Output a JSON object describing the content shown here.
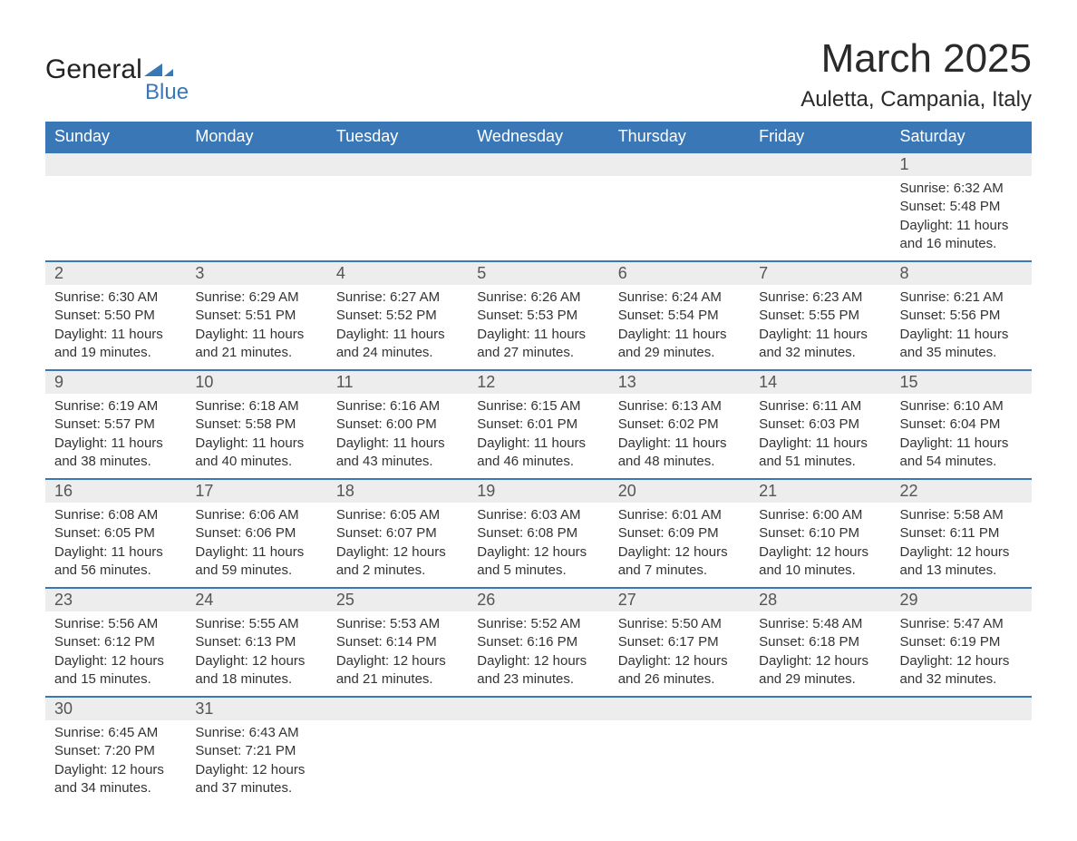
{
  "logo": {
    "text1": "General",
    "text2": "Blue",
    "shape_color": "#3a77b7"
  },
  "title": "March 2025",
  "location": "Auletta, Campania, Italy",
  "colors": {
    "header_bg": "#3a77b7",
    "header_text": "#ffffff",
    "daynum_bg": "#ededed",
    "border": "#3a77b7",
    "body_text": "#333333",
    "page_bg": "#ffffff"
  },
  "fonts": {
    "title_size_pt": 33,
    "location_size_pt": 18,
    "header_size_pt": 14,
    "daynum_size_pt": 14,
    "detail_size_pt": 11
  },
  "weekdays": [
    "Sunday",
    "Monday",
    "Tuesday",
    "Wednesday",
    "Thursday",
    "Friday",
    "Saturday"
  ],
  "weeks": [
    [
      null,
      null,
      null,
      null,
      null,
      null,
      {
        "n": "1",
        "sr": "Sunrise: 6:32 AM",
        "ss": "Sunset: 5:48 PM",
        "d1": "Daylight: 11 hours",
        "d2": "and 16 minutes."
      }
    ],
    [
      {
        "n": "2",
        "sr": "Sunrise: 6:30 AM",
        "ss": "Sunset: 5:50 PM",
        "d1": "Daylight: 11 hours",
        "d2": "and 19 minutes."
      },
      {
        "n": "3",
        "sr": "Sunrise: 6:29 AM",
        "ss": "Sunset: 5:51 PM",
        "d1": "Daylight: 11 hours",
        "d2": "and 21 minutes."
      },
      {
        "n": "4",
        "sr": "Sunrise: 6:27 AM",
        "ss": "Sunset: 5:52 PM",
        "d1": "Daylight: 11 hours",
        "d2": "and 24 minutes."
      },
      {
        "n": "5",
        "sr": "Sunrise: 6:26 AM",
        "ss": "Sunset: 5:53 PM",
        "d1": "Daylight: 11 hours",
        "d2": "and 27 minutes."
      },
      {
        "n": "6",
        "sr": "Sunrise: 6:24 AM",
        "ss": "Sunset: 5:54 PM",
        "d1": "Daylight: 11 hours",
        "d2": "and 29 minutes."
      },
      {
        "n": "7",
        "sr": "Sunrise: 6:23 AM",
        "ss": "Sunset: 5:55 PM",
        "d1": "Daylight: 11 hours",
        "d2": "and 32 minutes."
      },
      {
        "n": "8",
        "sr": "Sunrise: 6:21 AM",
        "ss": "Sunset: 5:56 PM",
        "d1": "Daylight: 11 hours",
        "d2": "and 35 minutes."
      }
    ],
    [
      {
        "n": "9",
        "sr": "Sunrise: 6:19 AM",
        "ss": "Sunset: 5:57 PM",
        "d1": "Daylight: 11 hours",
        "d2": "and 38 minutes."
      },
      {
        "n": "10",
        "sr": "Sunrise: 6:18 AM",
        "ss": "Sunset: 5:58 PM",
        "d1": "Daylight: 11 hours",
        "d2": "and 40 minutes."
      },
      {
        "n": "11",
        "sr": "Sunrise: 6:16 AM",
        "ss": "Sunset: 6:00 PM",
        "d1": "Daylight: 11 hours",
        "d2": "and 43 minutes."
      },
      {
        "n": "12",
        "sr": "Sunrise: 6:15 AM",
        "ss": "Sunset: 6:01 PM",
        "d1": "Daylight: 11 hours",
        "d2": "and 46 minutes."
      },
      {
        "n": "13",
        "sr": "Sunrise: 6:13 AM",
        "ss": "Sunset: 6:02 PM",
        "d1": "Daylight: 11 hours",
        "d2": "and 48 minutes."
      },
      {
        "n": "14",
        "sr": "Sunrise: 6:11 AM",
        "ss": "Sunset: 6:03 PM",
        "d1": "Daylight: 11 hours",
        "d2": "and 51 minutes."
      },
      {
        "n": "15",
        "sr": "Sunrise: 6:10 AM",
        "ss": "Sunset: 6:04 PM",
        "d1": "Daylight: 11 hours",
        "d2": "and 54 minutes."
      }
    ],
    [
      {
        "n": "16",
        "sr": "Sunrise: 6:08 AM",
        "ss": "Sunset: 6:05 PM",
        "d1": "Daylight: 11 hours",
        "d2": "and 56 minutes."
      },
      {
        "n": "17",
        "sr": "Sunrise: 6:06 AM",
        "ss": "Sunset: 6:06 PM",
        "d1": "Daylight: 11 hours",
        "d2": "and 59 minutes."
      },
      {
        "n": "18",
        "sr": "Sunrise: 6:05 AM",
        "ss": "Sunset: 6:07 PM",
        "d1": "Daylight: 12 hours",
        "d2": "and 2 minutes."
      },
      {
        "n": "19",
        "sr": "Sunrise: 6:03 AM",
        "ss": "Sunset: 6:08 PM",
        "d1": "Daylight: 12 hours",
        "d2": "and 5 minutes."
      },
      {
        "n": "20",
        "sr": "Sunrise: 6:01 AM",
        "ss": "Sunset: 6:09 PM",
        "d1": "Daylight: 12 hours",
        "d2": "and 7 minutes."
      },
      {
        "n": "21",
        "sr": "Sunrise: 6:00 AM",
        "ss": "Sunset: 6:10 PM",
        "d1": "Daylight: 12 hours",
        "d2": "and 10 minutes."
      },
      {
        "n": "22",
        "sr": "Sunrise: 5:58 AM",
        "ss": "Sunset: 6:11 PM",
        "d1": "Daylight: 12 hours",
        "d2": "and 13 minutes."
      }
    ],
    [
      {
        "n": "23",
        "sr": "Sunrise: 5:56 AM",
        "ss": "Sunset: 6:12 PM",
        "d1": "Daylight: 12 hours",
        "d2": "and 15 minutes."
      },
      {
        "n": "24",
        "sr": "Sunrise: 5:55 AM",
        "ss": "Sunset: 6:13 PM",
        "d1": "Daylight: 12 hours",
        "d2": "and 18 minutes."
      },
      {
        "n": "25",
        "sr": "Sunrise: 5:53 AM",
        "ss": "Sunset: 6:14 PM",
        "d1": "Daylight: 12 hours",
        "d2": "and 21 minutes."
      },
      {
        "n": "26",
        "sr": "Sunrise: 5:52 AM",
        "ss": "Sunset: 6:16 PM",
        "d1": "Daylight: 12 hours",
        "d2": "and 23 minutes."
      },
      {
        "n": "27",
        "sr": "Sunrise: 5:50 AM",
        "ss": "Sunset: 6:17 PM",
        "d1": "Daylight: 12 hours",
        "d2": "and 26 minutes."
      },
      {
        "n": "28",
        "sr": "Sunrise: 5:48 AM",
        "ss": "Sunset: 6:18 PM",
        "d1": "Daylight: 12 hours",
        "d2": "and 29 minutes."
      },
      {
        "n": "29",
        "sr": "Sunrise: 5:47 AM",
        "ss": "Sunset: 6:19 PM",
        "d1": "Daylight: 12 hours",
        "d2": "and 32 minutes."
      }
    ],
    [
      {
        "n": "30",
        "sr": "Sunrise: 6:45 AM",
        "ss": "Sunset: 7:20 PM",
        "d1": "Daylight: 12 hours",
        "d2": "and 34 minutes."
      },
      {
        "n": "31",
        "sr": "Sunrise: 6:43 AM",
        "ss": "Sunset: 7:21 PM",
        "d1": "Daylight: 12 hours",
        "d2": "and 37 minutes."
      },
      null,
      null,
      null,
      null,
      null
    ]
  ]
}
